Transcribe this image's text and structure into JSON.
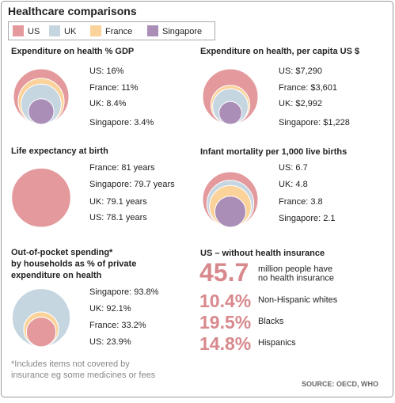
{
  "header": {
    "title": "Healthcare comparisons"
  },
  "legend": [
    {
      "name": "US",
      "color": "#e49a9d"
    },
    {
      "name": "UK",
      "color": "#c6d6e1"
    },
    {
      "name": "France",
      "color": "#fbd39a"
    },
    {
      "name": "Singapore",
      "color": "#ab8eb8"
    }
  ],
  "chart_data": [
    {
      "type": "nested-circles",
      "title": "Expenditure on health % GDP",
      "categories": [
        "US",
        "France",
        "UK",
        "Singapore"
      ],
      "values": [
        16,
        11,
        8.4,
        3.4
      ],
      "value_labels": [
        "US: 16%",
        "France: 11%",
        "UK: 8.4%",
        "Singapore: 3.4%"
      ]
    },
    {
      "type": "nested-circles",
      "title": "Expenditure on health, per capita US $",
      "categories": [
        "US",
        "France",
        "UK",
        "Singapore"
      ],
      "values": [
        7290,
        3601,
        2992,
        1228
      ],
      "value_labels": [
        "US: $7,290",
        "France: $3,601",
        "UK: $2,992",
        "Singapore: $1,228"
      ]
    },
    {
      "type": "nested-circles",
      "title": "Life expectancy at birth",
      "categories": [
        "France",
        "Singapore",
        "UK",
        "US"
      ],
      "values": [
        81,
        79.7,
        79.1,
        78.1
      ],
      "value_labels": [
        "France: 81 years",
        "Singapore: 79.7 years",
        "UK: 79.1 years",
        "US: 78.1 years"
      ]
    },
    {
      "type": "nested-circles",
      "title": "Infant mortality per 1,000 live births",
      "categories": [
        "US",
        "UK",
        "France",
        "Singapore"
      ],
      "values": [
        6.7,
        4.8,
        3.8,
        2.1
      ],
      "value_labels": [
        "US: 6.7",
        "UK: 4.8",
        "France: 3.8",
        "Singapore: 2.1"
      ]
    },
    {
      "type": "nested-circles",
      "title": [
        "Out-of-pocket spending*",
        "by households as % of private",
        "expenditure on health"
      ],
      "categories": [
        "Singapore",
        "UK",
        "France",
        "US"
      ],
      "values": [
        93.8,
        92.1,
        33.2,
        23.9
      ],
      "value_labels": [
        "Singapore: 93.8%",
        "UK: 92.1%",
        "France: 33.2%",
        "US: 23.9%"
      ]
    }
  ],
  "insurance": {
    "title": "US – without health insurance",
    "color": "#d8898d",
    "items": [
      {
        "value": "45.7",
        "label": [
          "million people have",
          "no health insurance"
        ]
      },
      {
        "value": "10.4%",
        "label": [
          "Non-Hispanic whites"
        ]
      },
      {
        "value": "19.5%",
        "label": [
          "Blacks"
        ]
      },
      {
        "value": "14.8%",
        "label": [
          "Hispanics"
        ]
      }
    ]
  },
  "footnote": [
    "*Includes items not covered by",
    "insurance eg some medicines or fees"
  ],
  "source": "SOURCE: OECD, WHO"
}
